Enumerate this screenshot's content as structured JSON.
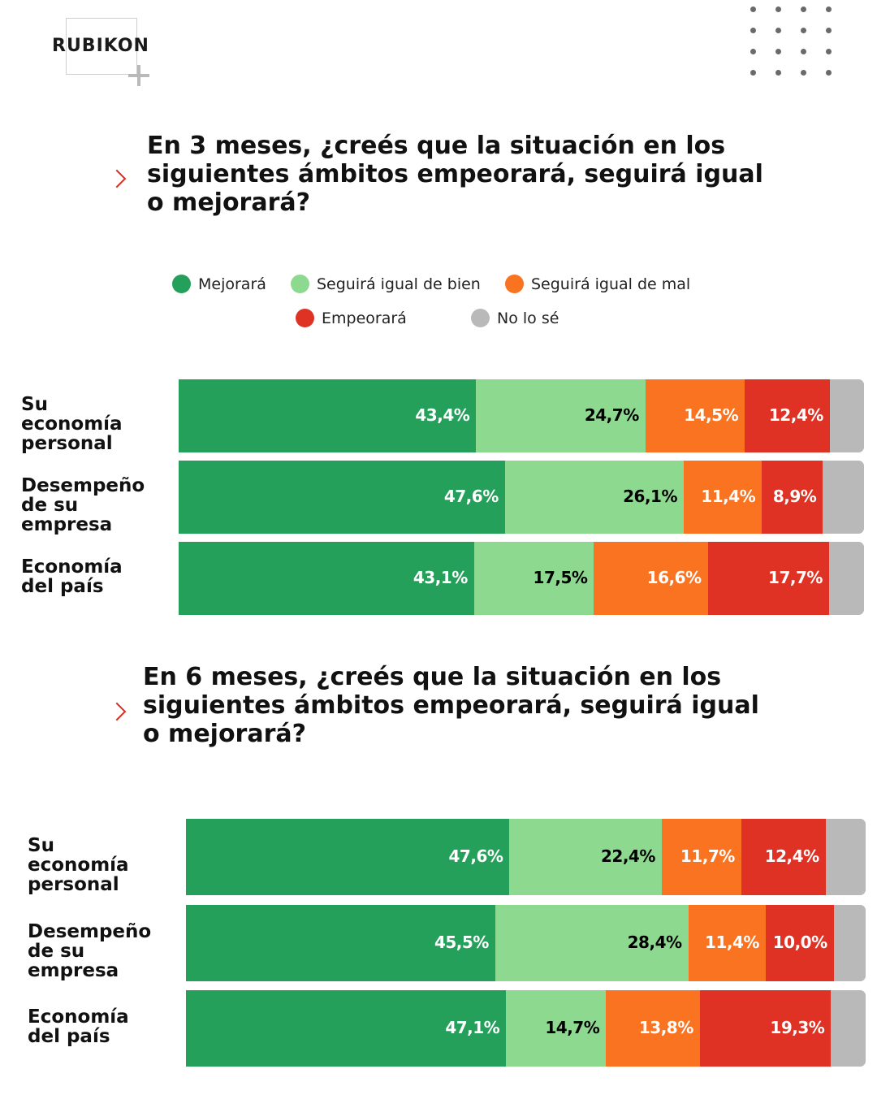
{
  "brand": {
    "logo_text": "RUBIKON"
  },
  "legend": [
    {
      "label": "Mejorará",
      "color": "#24a05b"
    },
    {
      "label": "Seguirá igual de bien",
      "color": "#8ed990"
    },
    {
      "label": "Seguirá igual de mal",
      "color": "#fa7320"
    },
    {
      "label": "Empeorará",
      "color": "#e03224"
    },
    {
      "label": "No lo sé",
      "color": "#b9b9b9"
    }
  ],
  "questions": [
    {
      "text": "En 3 meses, ¿creés que la situación en los siguientes ámbitos empeorará, seguirá igual o mejorará?"
    },
    {
      "text": "En 6 meses, ¿creés que la situación en los siguientes ámbitos empeorará, seguirá igual o mejorará?"
    }
  ],
  "chart_data": [
    {
      "type": "bar",
      "orientation": "horizontal",
      "stacked": true,
      "title": "En 3 meses, ¿creés que la situación en los siguientes ámbitos empeorará, seguirá igual o mejorará?",
      "categories": [
        "Su economía personal",
        "Desempeño de su empresa",
        "Economía del país"
      ],
      "series": [
        {
          "name": "Mejorará",
          "values": [
            43.4,
            47.6,
            43.1
          ],
          "labels": [
            "43,4%",
            "47,6%",
            "43,1%"
          ]
        },
        {
          "name": "Seguirá igual de bien",
          "values": [
            24.7,
            26.1,
            17.5
          ],
          "labels": [
            "24,7%",
            "26,1%",
            "17,5%"
          ]
        },
        {
          "name": "Seguirá igual de mal",
          "values": [
            14.5,
            11.4,
            16.6
          ],
          "labels": [
            "14,5%",
            "11,4%",
            "16,6%"
          ]
        },
        {
          "name": "Empeorará",
          "values": [
            12.4,
            8.9,
            17.7
          ],
          "labels": [
            "12,4%",
            "8,9%",
            "17,7%"
          ]
        },
        {
          "name": "No lo sé",
          "values": [
            5.0,
            6.0,
            5.1
          ],
          "labels": [
            "",
            "",
            ""
          ]
        }
      ],
      "xlim": [
        0,
        100
      ],
      "legend_position": "top-center"
    },
    {
      "type": "bar",
      "orientation": "horizontal",
      "stacked": true,
      "title": "En 6 meses, ¿creés que la situación en los siguientes ámbitos empeorará, seguirá igual o mejorará?",
      "categories": [
        "Su economía personal",
        "Desempeño de su empresa",
        "Economía del país"
      ],
      "series": [
        {
          "name": "Mejorará",
          "values": [
            47.6,
            45.5,
            47.1
          ],
          "labels": [
            "47,6%",
            "45,5%",
            "47,1%"
          ]
        },
        {
          "name": "Seguirá igual de bien",
          "values": [
            22.4,
            28.4,
            14.7
          ],
          "labels": [
            "22,4%",
            "28,4%",
            "14,7%"
          ]
        },
        {
          "name": "Seguirá igual de mal",
          "values": [
            11.7,
            11.4,
            13.8
          ],
          "labels": [
            "11,7%",
            "11,4%",
            "13,8%"
          ]
        },
        {
          "name": "Empeorará",
          "values": [
            12.4,
            10.0,
            19.3
          ],
          "labels": [
            "12,4%",
            "10,0%",
            "19,3%"
          ]
        },
        {
          "name": "No lo sé",
          "values": [
            5.9,
            4.7,
            5.1
          ],
          "labels": [
            "",
            "",
            ""
          ]
        }
      ],
      "xlim": [
        0,
        100
      ],
      "legend_position": "shared-top"
    }
  ],
  "label_colors": [
    "#ffffff",
    "#000000",
    "#ffffff",
    "#ffffff",
    "#ffffff"
  ],
  "row_labels": [
    [
      "Su economía",
      "personal"
    ],
    [
      "Desempeño",
      "de su empresa"
    ],
    [
      "Economía",
      "del país"
    ]
  ]
}
